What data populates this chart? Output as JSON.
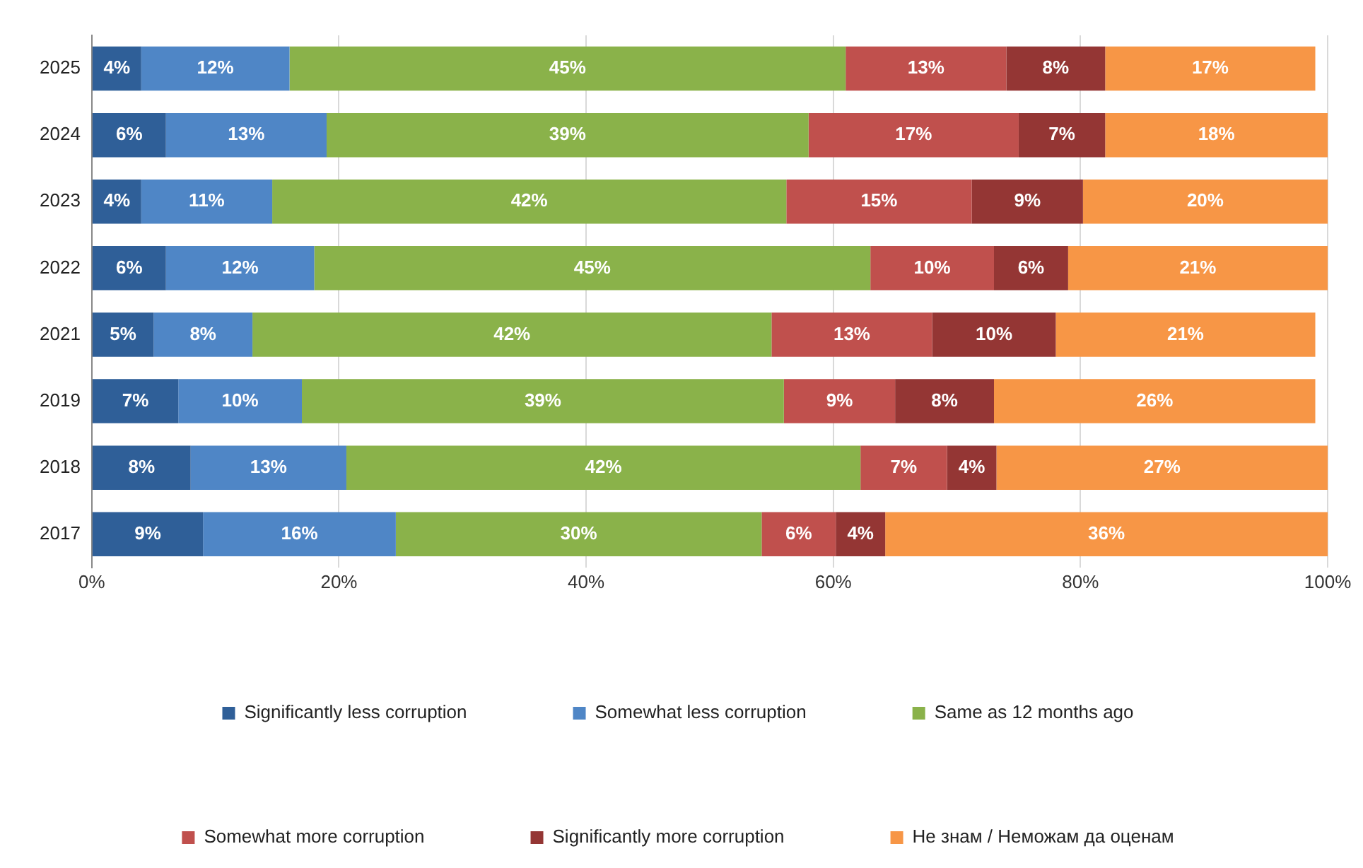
{
  "chart_data": {
    "type": "bar",
    "orientation": "horizontal",
    "stacked": true,
    "categories": [
      "2025",
      "2024",
      "2023",
      "2022",
      "2021",
      "2019",
      "2018",
      "2017"
    ],
    "series": [
      {
        "name": "Significantly less corruption",
        "color": "#2f5f98",
        "values": [
          4,
          6,
          4,
          6,
          5,
          7,
          8,
          9
        ],
        "value_labels": [
          "4%",
          "6%",
          "4%",
          "6%",
          "5%",
          "7%",
          "8%",
          "9%"
        ]
      },
      {
        "name": "Somewhat less corruption",
        "color": "#4f86c6",
        "values": [
          12,
          13,
          10.6,
          12,
          8,
          10,
          12.6,
          15.6
        ],
        "value_labels": [
          "12%",
          "13%",
          "11%",
          "12%",
          "8%",
          "10%",
          "13%",
          "16%"
        ]
      },
      {
        "name": "Same as 12 months ago",
        "color": "#8ab24a",
        "values": [
          45,
          39,
          41.6,
          45,
          42,
          39,
          41.6,
          29.6
        ],
        "value_labels": [
          "45%",
          "39%",
          "42%",
          "45%",
          "42%",
          "39%",
          "42%",
          "30%"
        ]
      },
      {
        "name": "Somewhat more corruption",
        "color": "#c0504d",
        "values": [
          13,
          17,
          15,
          10,
          13,
          9,
          7,
          6
        ],
        "value_labels": [
          "13%",
          "17%",
          "15%",
          "10%",
          "13%",
          "9%",
          "7%",
          "6%"
        ]
      },
      {
        "name": "Significantly more corruption",
        "color": "#943634",
        "values": [
          8,
          7,
          9,
          6,
          10,
          8,
          4,
          4
        ],
        "value_labels": [
          "8%",
          "7%",
          "9%",
          "6%",
          "10%",
          "8%",
          "4%",
          "4%"
        ]
      },
      {
        "name": "Не знам / Неможам да оценам",
        "color": "#f79646",
        "values": [
          17,
          18,
          19.8,
          21,
          21,
          26,
          26.8,
          35.8
        ],
        "value_labels": [
          "17%",
          "18%",
          "20%",
          "21%",
          "21%",
          "26%",
          "27%",
          "36%"
        ]
      }
    ],
    "xlim": [
      0,
      100
    ],
    "xticks": [
      {
        "value": 0,
        "label": "0%"
      },
      {
        "value": 20,
        "label": "20%"
      },
      {
        "value": 40,
        "label": "40%"
      },
      {
        "value": 60,
        "label": "60%"
      },
      {
        "value": 80,
        "label": "80%"
      },
      {
        "value": 100,
        "label": "100%"
      }
    ],
    "grid": "x",
    "legend": "bottom"
  }
}
